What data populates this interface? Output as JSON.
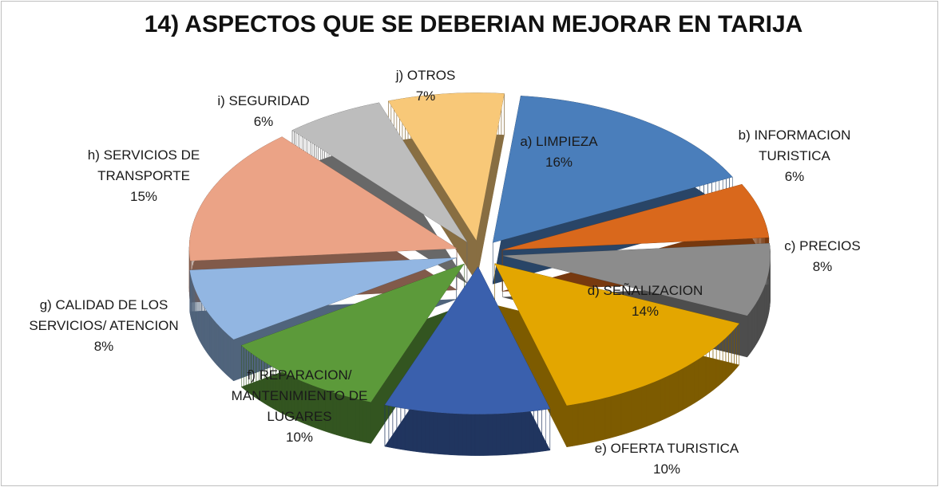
{
  "chart_data": {
    "type": "pie",
    "title": "14) ASPECTOS QUE SE DEBERIAN MEJORAR EN TARIJA",
    "categories": [
      "a) LIMPIEZA",
      "b) INFORMACION TURISTICA",
      "c) PRECIOS",
      "d) SEÑALIZACION",
      "e) OFERTA TURISTICA",
      "f) REPARACION/ MANTENIMIENTO DE LUGARES",
      "g) CALIDAD DE LOS SERVICIOS/ ATENCION",
      "h) SERVICIOS DE TRANSPORTE",
      "i) SEGURIDAD",
      "j) OTROS"
    ],
    "values": [
      16,
      6,
      8,
      14,
      10,
      10,
      8,
      15,
      6,
      7
    ],
    "value_labels": [
      "16%",
      "6%",
      "8%",
      "14%",
      "10%",
      "10%",
      "8%",
      "15%",
      "6%",
      "7%"
    ],
    "colors": [
      "#4a7ebb",
      "#d9681c",
      "#8c8c8c",
      "#e3a600",
      "#3a60ad",
      "#5c9a3a",
      "#92b6e2",
      "#eba386",
      "#bdbdbd",
      "#f8c878"
    ]
  }
}
